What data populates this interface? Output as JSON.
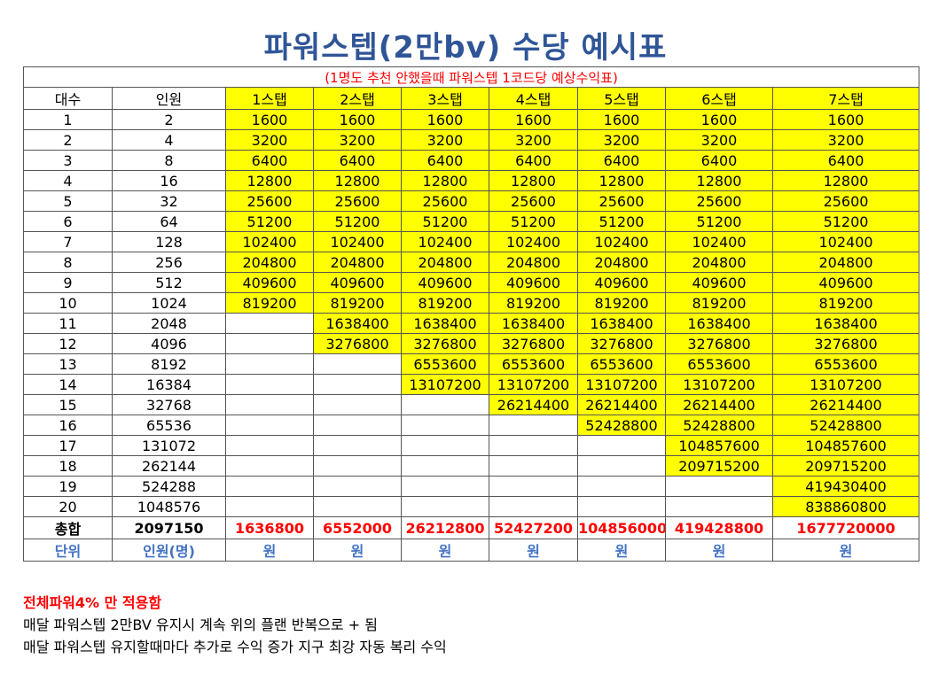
{
  "title": "파워스텝(2만bv) 수당 예시표",
  "subtitle": "(1명도 추천 안했을때 파워스텝 1코드당 예상수익표)",
  "headers": [
    "대수",
    "인원",
    "1스탭",
    "2스탭",
    "3스탭",
    "4스탭",
    "5스탭",
    "6스탭",
    "7스탭"
  ],
  "rows": [
    {
      "gen": "1",
      "people": "2",
      "steps": [
        "1600",
        "1600",
        "1600",
        "1600",
        "1600",
        "1600",
        "1600"
      ]
    },
    {
      "gen": "2",
      "people": "4",
      "steps": [
        "3200",
        "3200",
        "3200",
        "3200",
        "3200",
        "3200",
        "3200"
      ]
    },
    {
      "gen": "3",
      "people": "8",
      "steps": [
        "6400",
        "6400",
        "6400",
        "6400",
        "6400",
        "6400",
        "6400"
      ]
    },
    {
      "gen": "4",
      "people": "16",
      "steps": [
        "12800",
        "12800",
        "12800",
        "12800",
        "12800",
        "12800",
        "12800"
      ]
    },
    {
      "gen": "5",
      "people": "32",
      "steps": [
        "25600",
        "25600",
        "25600",
        "25600",
        "25600",
        "25600",
        "25600"
      ]
    },
    {
      "gen": "6",
      "people": "64",
      "steps": [
        "51200",
        "51200",
        "51200",
        "51200",
        "51200",
        "51200",
        "51200"
      ]
    },
    {
      "gen": "7",
      "people": "128",
      "steps": [
        "102400",
        "102400",
        "102400",
        "102400",
        "102400",
        "102400",
        "102400"
      ]
    },
    {
      "gen": "8",
      "people": "256",
      "steps": [
        "204800",
        "204800",
        "204800",
        "204800",
        "204800",
        "204800",
        "204800"
      ]
    },
    {
      "gen": "9",
      "people": "512",
      "steps": [
        "409600",
        "409600",
        "409600",
        "409600",
        "409600",
        "409600",
        "409600"
      ]
    },
    {
      "gen": "10",
      "people": "1024",
      "steps": [
        "819200",
        "819200",
        "819200",
        "819200",
        "819200",
        "819200",
        "819200"
      ]
    },
    {
      "gen": "11",
      "people": "2048",
      "steps": [
        "",
        "1638400",
        "1638400",
        "1638400",
        "1638400",
        "1638400",
        "1638400"
      ]
    },
    {
      "gen": "12",
      "people": "4096",
      "steps": [
        "",
        "3276800",
        "3276800",
        "3276800",
        "3276800",
        "3276800",
        "3276800"
      ]
    },
    {
      "gen": "13",
      "people": "8192",
      "steps": [
        "",
        "",
        "6553600",
        "6553600",
        "6553600",
        "6553600",
        "6553600"
      ]
    },
    {
      "gen": "14",
      "people": "16384",
      "steps": [
        "",
        "",
        "13107200",
        "13107200",
        "13107200",
        "13107200",
        "13107200"
      ]
    },
    {
      "gen": "15",
      "people": "32768",
      "steps": [
        "",
        "",
        "",
        "26214400",
        "26214400",
        "26214400",
        "26214400"
      ]
    },
    {
      "gen": "16",
      "people": "65536",
      "steps": [
        "",
        "",
        "",
        "",
        "52428800",
        "52428800",
        "52428800"
      ]
    },
    {
      "gen": "17",
      "people": "131072",
      "steps": [
        "",
        "",
        "",
        "",
        "",
        "104857600",
        "104857600"
      ]
    },
    {
      "gen": "18",
      "people": "262144",
      "steps": [
        "",
        "",
        "",
        "",
        "",
        "209715200",
        "209715200"
      ]
    },
    {
      "gen": "19",
      "people": "524288",
      "steps": [
        "",
        "",
        "",
        "",
        "",
        "",
        "419430400"
      ]
    },
    {
      "gen": "20",
      "people": "1048576",
      "steps": [
        "",
        "",
        "",
        "",
        "",
        "",
        "838860800"
      ]
    }
  ],
  "total": {
    "label": "총합",
    "people": "2097150",
    "steps": [
      "1636800",
      "6552000",
      "26212800",
      "52427200",
      "104856000",
      "419428800",
      "1677720000"
    ]
  },
  "units": {
    "label": "단위",
    "people": "인원(명)",
    "steps": [
      "원",
      "원",
      "원",
      "원",
      "원",
      "원",
      "원"
    ]
  },
  "notes": {
    "highlight": "전체파워4% 만 적용함",
    "line1": "매달 파워스텝 2만BV 유지시 계속 위의 플랜 반복으로 + 됨",
    "line2": "매달 파워스텝 유지할때마다 추가로 수익 증가 지구 최강 자동 복리 수익"
  },
  "colors": {
    "title": "#2f5597",
    "highlight_fill": "#ffff00",
    "red": "#ff0000",
    "unit_blue": "#4472c4"
  }
}
